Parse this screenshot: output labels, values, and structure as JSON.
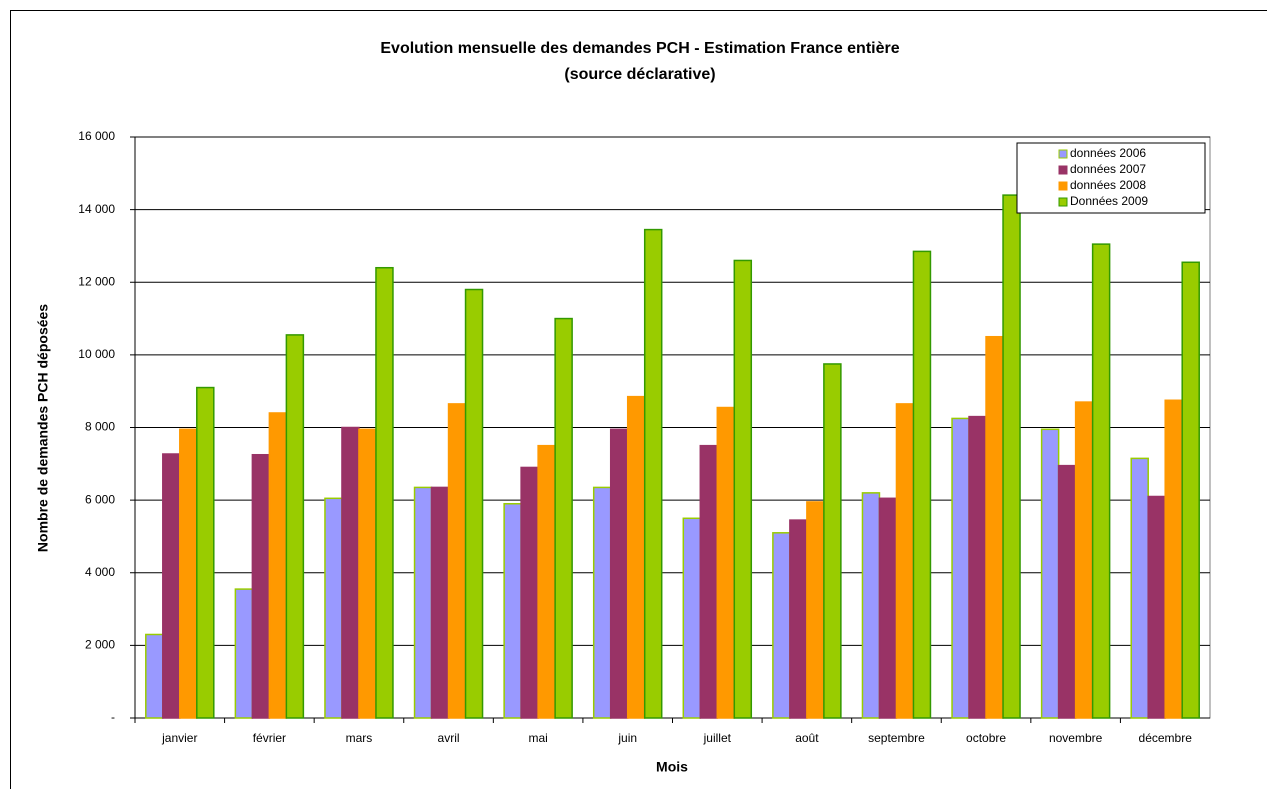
{
  "chart_data": {
    "type": "bar",
    "title": "Evolution mensuelle des demandes PCH  - Estimation France entière",
    "subtitle": "(source déclarative)",
    "x_label": "Mois",
    "y_label": "Nombre de demandes PCH déposées",
    "categories": [
      "janvier",
      "février",
      "mars",
      "avril",
      "mai",
      "juin",
      "juillet",
      "août",
      "septembre",
      "octobre",
      "novembre",
      "décembre"
    ],
    "series": [
      {
        "name": "données 2006",
        "color": "#9999ff",
        "border": "#99cc00",
        "values": [
          2300,
          3550,
          6050,
          6350,
          5900,
          6350,
          5500,
          5100,
          6200,
          8250,
          7950,
          7150
        ]
      },
      {
        "name": "données 2007",
        "color": "#993366",
        "border": "#993366",
        "values": [
          7270,
          7250,
          8000,
          6350,
          6900,
          7950,
          7500,
          5450,
          6050,
          8300,
          6950,
          6100
        ]
      },
      {
        "name": "données 2008",
        "color": "#ff9900",
        "border": "#ff9900",
        "values": [
          7950,
          8400,
          7950,
          8650,
          7500,
          8850,
          8550,
          5950,
          8650,
          10500,
          8700,
          8750
        ]
      },
      {
        "name": "Données 2009",
        "color": "#99cc00",
        "border": "#339900",
        "values": [
          9100,
          10550,
          12400,
          11800,
          11000,
          13450,
          12600,
          9750,
          12850,
          14400,
          13050,
          12550
        ]
      }
    ],
    "ylim": [
      0,
      16000
    ],
    "yticks": [
      {
        "value": 0,
        "label": "-"
      },
      {
        "value": 2000,
        "label": "2 000"
      },
      {
        "value": 4000,
        "label": "4 000"
      },
      {
        "value": 6000,
        "label": "6 000"
      },
      {
        "value": 8000,
        "label": "8 000"
      },
      {
        "value": 10000,
        "label": "10 000"
      },
      {
        "value": 12000,
        "label": "12 000"
      },
      {
        "value": 14000,
        "label": "14 000"
      },
      {
        "value": 16000,
        "label": "16 000"
      }
    ],
    "grid": true,
    "legend": "top-right"
  }
}
